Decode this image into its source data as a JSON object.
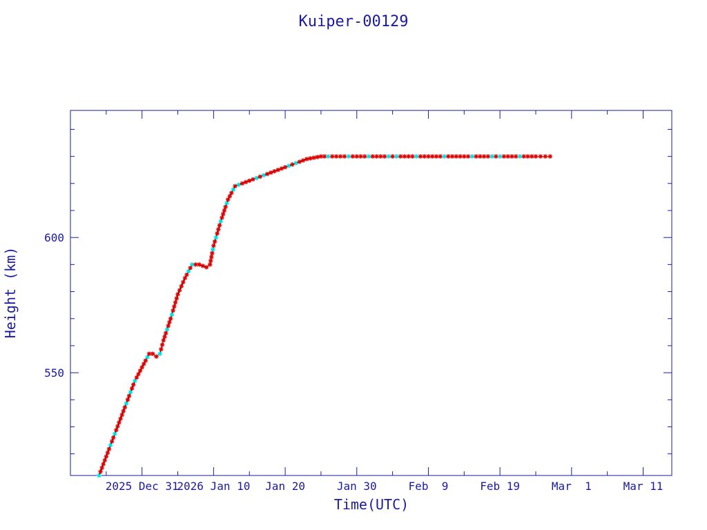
{
  "chart_data": {
    "type": "line",
    "title": "Kuiper-00129",
    "xlabel": "Time(UTC)",
    "ylabel": "Height (km)",
    "x_tick_labels": [
      "2025 Dec 31",
      "2026 Jan 10",
      "Jan 20",
      "Jan 30",
      "Feb  9",
      "Feb 19",
      "Mar  1",
      "Mar 11"
    ],
    "x_tick_dates": [
      "2025-12-31",
      "2026-01-10",
      "2026-01-20",
      "2026-01-30",
      "2026-02-09",
      "2026-02-19",
      "2026-03-01",
      "2026-03-11"
    ],
    "y_ticks": [
      550,
      600
    ],
    "xlim": [
      "2025-12-21",
      "2026-03-15"
    ],
    "ylim": [
      512,
      647
    ],
    "grid": false,
    "colors": {
      "frame": "#1a1aa0",
      "line": "#000000",
      "marker_a": "#e00000",
      "marker_b": "#00e0e0"
    },
    "series": [
      {
        "x": [
          "2025-12-25",
          "2025-12-26",
          "2025-12-27",
          "2025-12-28",
          "2025-12-29",
          "2025-12-30",
          "2025-12-31",
          "2026-01-01",
          "2026-01-01T12:00",
          "2026-01-02",
          "2026-01-02T12:00",
          "2026-01-03",
          "2026-01-04",
          "2026-01-05",
          "2026-01-06",
          "2026-01-07",
          "2026-01-08",
          "2026-01-09",
          "2026-01-09T12:00",
          "2026-01-10",
          "2026-01-11",
          "2026-01-12",
          "2026-01-13",
          "2026-01-14",
          "2026-01-15",
          "2026-01-17",
          "2026-01-19",
          "2026-01-21",
          "2026-01-23",
          "2026-01-25",
          "2026-01-26",
          "2026-01-30",
          "2026-02-04",
          "2026-02-09",
          "2026-02-14",
          "2026-02-19",
          "2026-02-24",
          "2026-02-26"
        ],
        "y": [
          512,
          519,
          526,
          533,
          540,
          547,
          552,
          557,
          557,
          556,
          557,
          562,
          570,
          579,
          585,
          590,
          590,
          589,
          590,
          597,
          606,
          614,
          619,
          620,
          621,
          623,
          625,
          627,
          629,
          630,
          630,
          630,
          630,
          630,
          630,
          630,
          630,
          630
        ]
      }
    ]
  }
}
